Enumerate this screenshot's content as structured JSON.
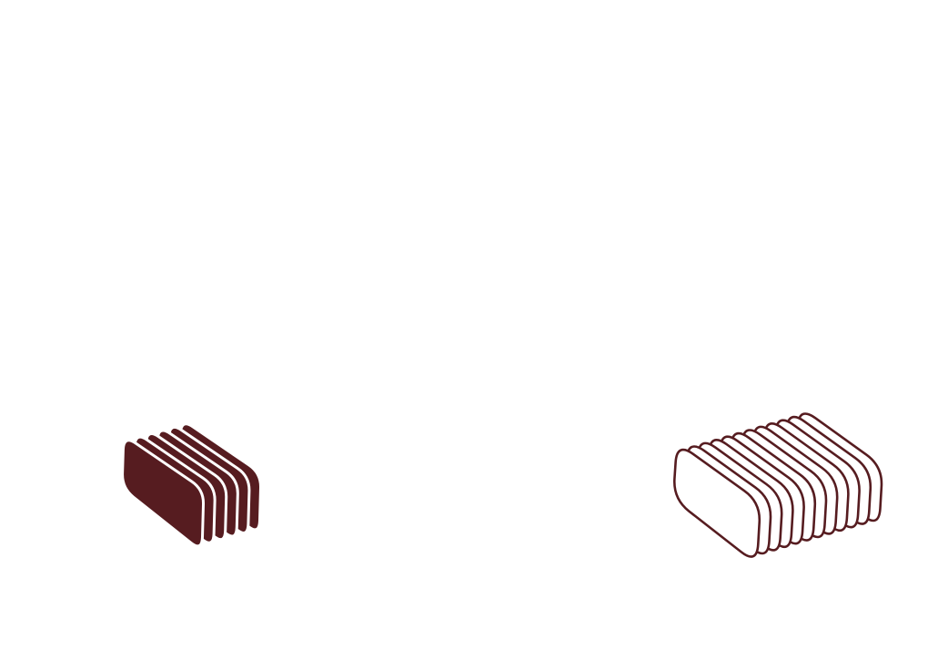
{
  "canvas": {
    "background": "#ffffff"
  },
  "colors": {
    "accent": "#561c20"
  },
  "stacks": [
    {
      "name": "filled-stack",
      "style": "filled",
      "slice_count": 6,
      "fill": "#561c20",
      "stroke": "#ffffff"
    },
    {
      "name": "outline-stack",
      "style": "outline",
      "slice_count": 12,
      "fill": "#ffffff",
      "stroke": "#561c20"
    }
  ]
}
